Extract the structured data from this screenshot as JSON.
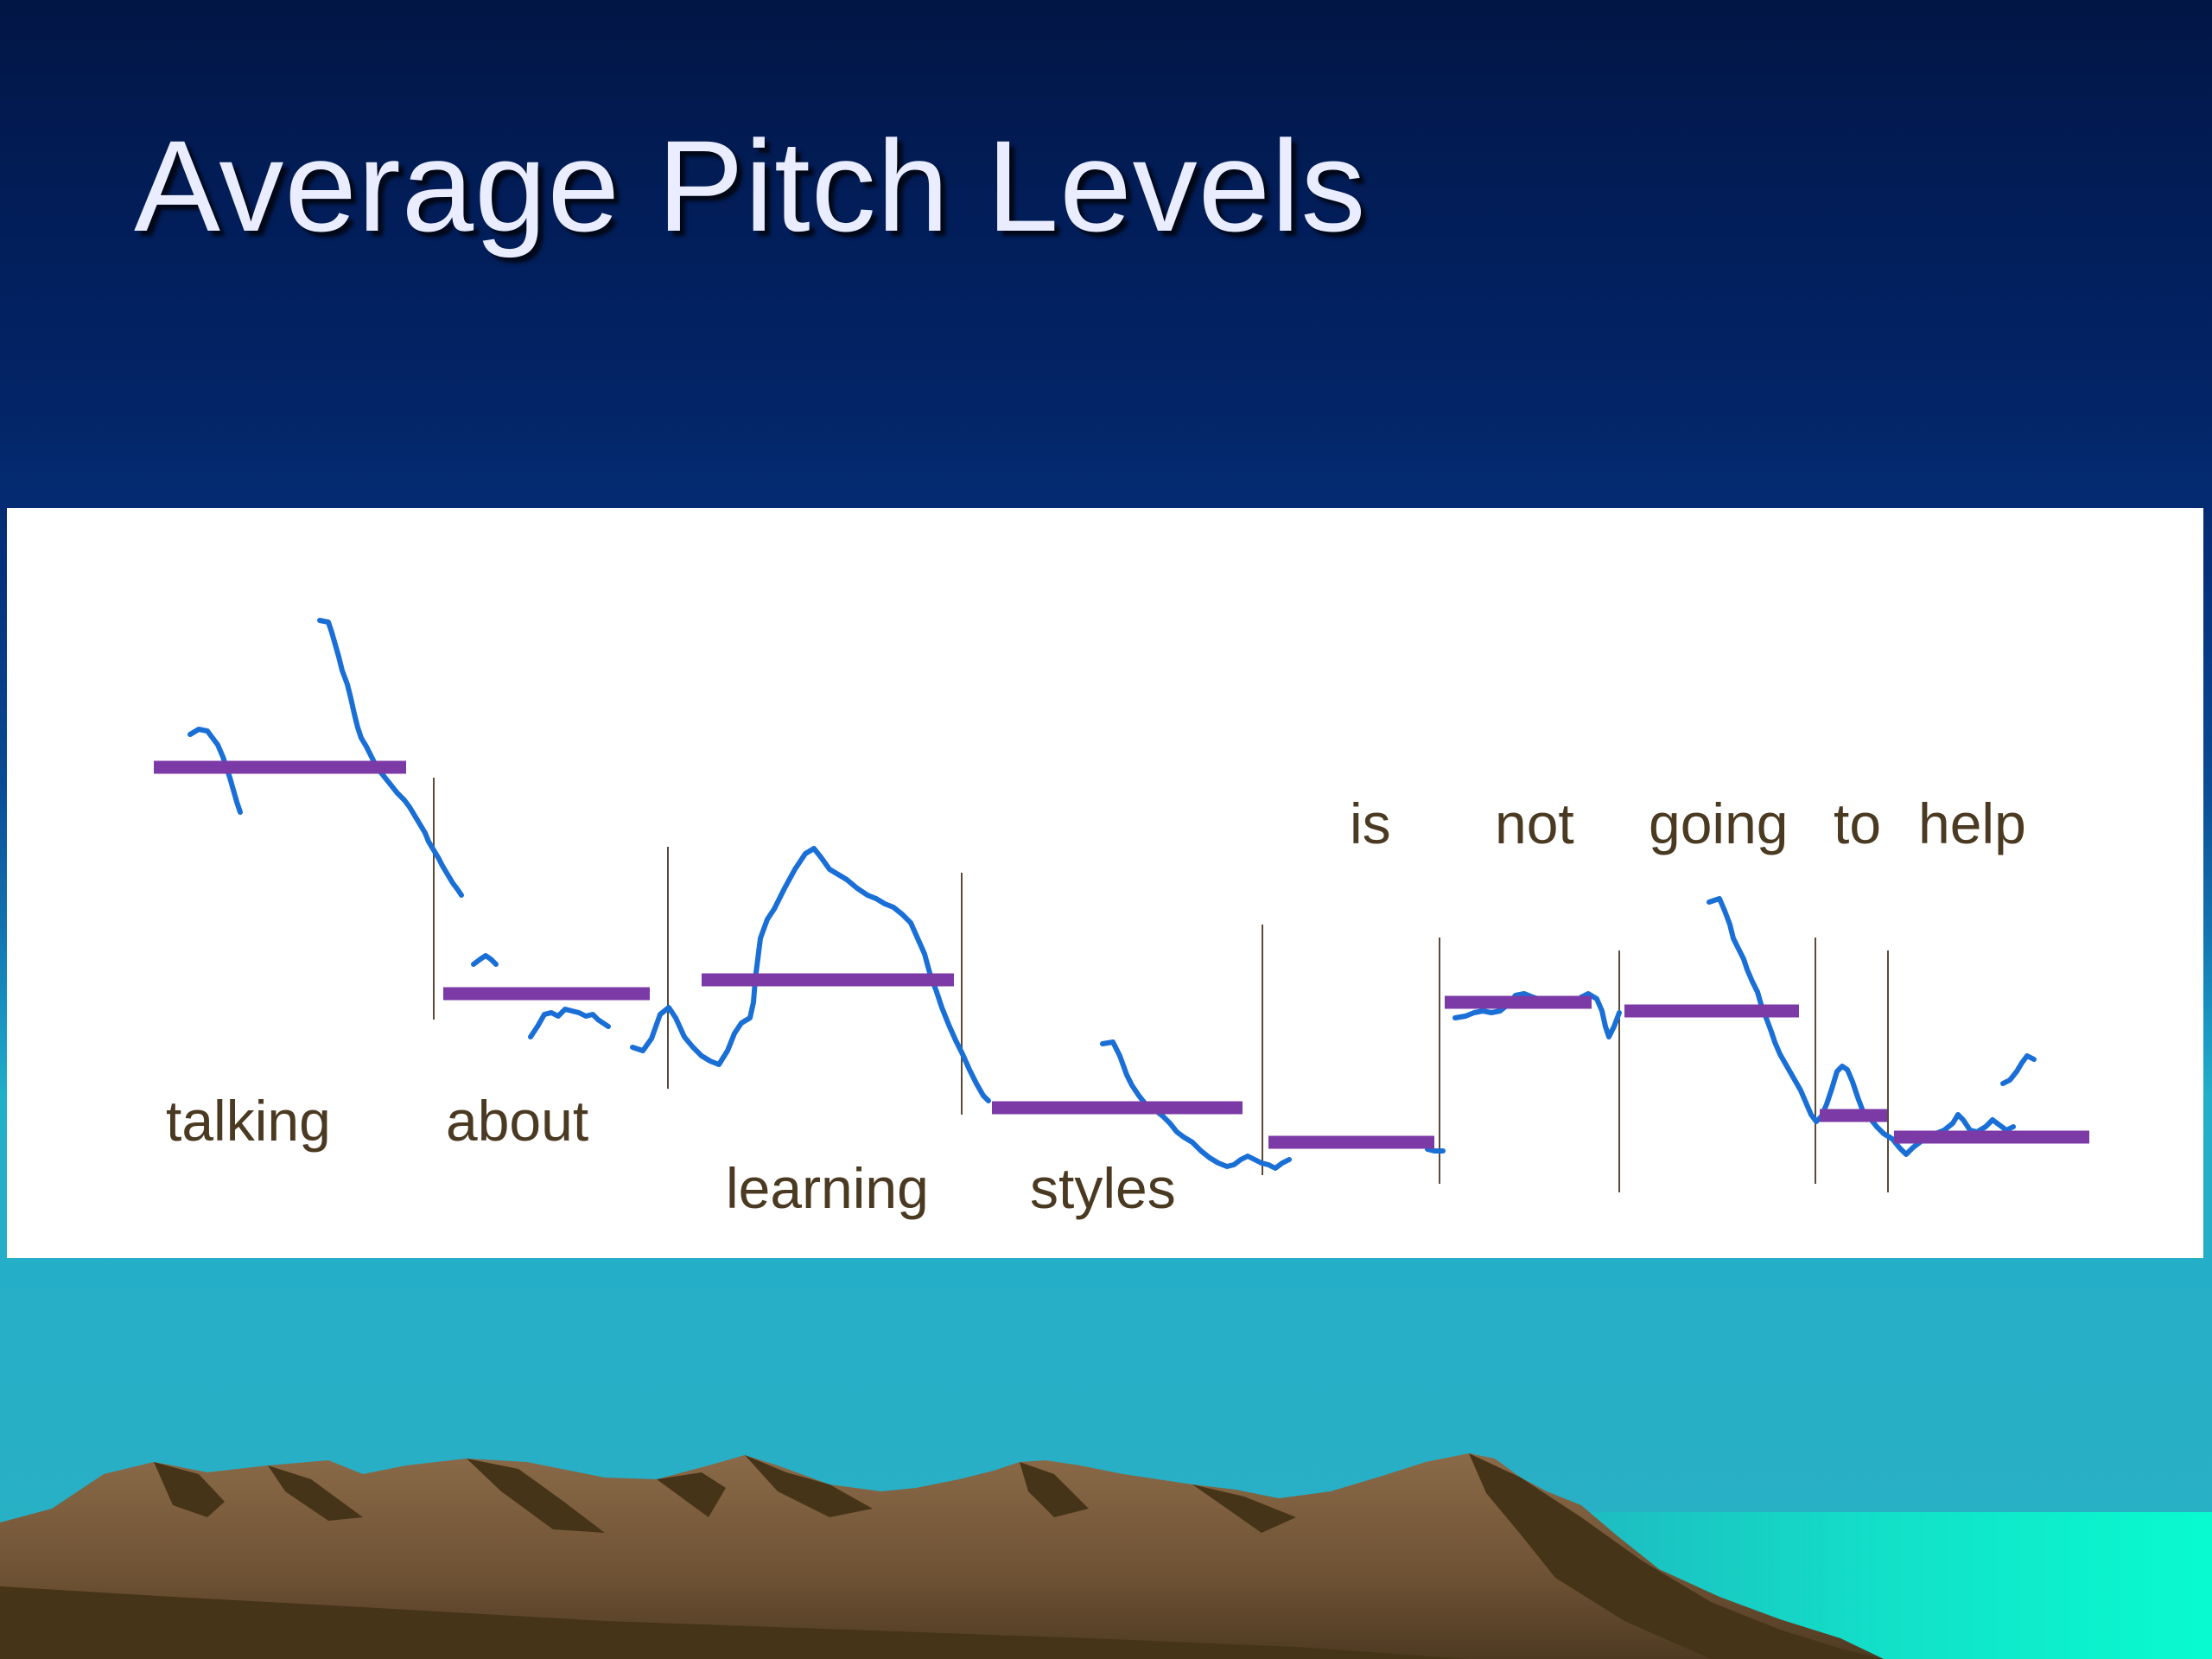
{
  "title": "Average Pitch Levels",
  "words": [
    "talking",
    "about",
    "learning",
    "styles",
    "is",
    "not",
    "going",
    "to",
    "help"
  ],
  "colors": {
    "pitch_contour": "#1a6fd6",
    "average_bar": "#7b3aa6",
    "boundary_line": "#5a4a3a",
    "word_text": "#4b3a22",
    "title_text": "#e9edff"
  }
}
